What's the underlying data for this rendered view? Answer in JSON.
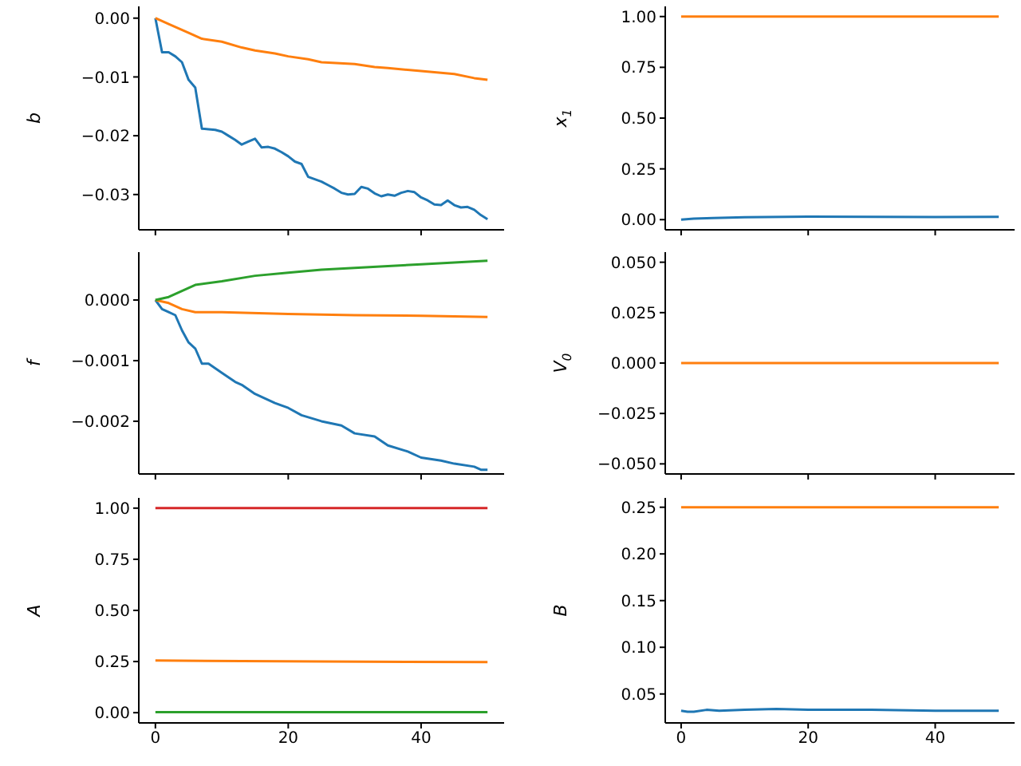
{
  "chart_data": [
    {
      "type": "line",
      "ylabel": "b",
      "xlim": [
        -2.5,
        52.5
      ],
      "xticks": [
        0,
        20,
        40
      ],
      "ylim": [
        -0.036,
        0.002
      ],
      "yticks": [
        {
          "value": 0,
          "label": "0.00"
        },
        {
          "value": -0.01,
          "label": "−0.01"
        },
        {
          "value": -0.02,
          "label": "−0.02"
        },
        {
          "value": -0.03,
          "label": "−0.03"
        }
      ],
      "tick_labels": "y",
      "series": [
        {
          "color": "#1f77b4",
          "x": [
            0,
            1,
            2,
            3,
            4,
            5,
            6,
            7,
            8,
            9,
            10,
            11,
            12,
            13,
            14,
            15,
            16,
            17,
            18,
            19,
            20,
            21,
            22,
            23,
            24,
            25,
            26,
            27,
            28,
            29,
            30,
            31,
            32,
            33,
            34,
            35,
            36,
            37,
            38,
            39,
            40,
            41,
            42,
            43,
            44,
            45,
            46,
            47,
            48,
            49,
            50
          ],
          "values": [
            0,
            -0.0058,
            -0.0058,
            -0.0065,
            -0.0075,
            -0.0105,
            -0.0118,
            -0.0188,
            -0.0189,
            -0.019,
            -0.0193,
            -0.02,
            -0.0207,
            -0.0215,
            -0.021,
            -0.0205,
            -0.022,
            -0.0219,
            -0.0222,
            -0.0228,
            -0.0235,
            -0.0244,
            -0.0248,
            -0.027,
            -0.0274,
            -0.0278,
            -0.0284,
            -0.029,
            -0.0297,
            -0.03,
            -0.0299,
            -0.0287,
            -0.029,
            -0.0298,
            -0.0303,
            -0.03,
            -0.0302,
            -0.0297,
            -0.0294,
            -0.0296,
            -0.0305,
            -0.031,
            -0.0317,
            -0.0318,
            -0.031,
            -0.0318,
            -0.0322,
            -0.0321,
            -0.0326,
            -0.0335,
            -0.0342
          ]
        },
        {
          "color": "#ff7f0e",
          "x": [
            0,
            2,
            5,
            7,
            10,
            13,
            15,
            18,
            20,
            23,
            25,
            30,
            33,
            35,
            40,
            45,
            48,
            50
          ],
          "values": [
            0,
            -0.001,
            -0.0025,
            -0.0035,
            -0.004,
            -0.005,
            -0.0055,
            -0.006,
            -0.0065,
            -0.007,
            -0.0075,
            -0.0078,
            -0.0083,
            -0.0085,
            -0.009,
            -0.0095,
            -0.0102,
            -0.0105
          ]
        }
      ]
    },
    {
      "type": "line",
      "ylabel": "x$_{1}$",
      "xlim": [
        -2.5,
        52.5
      ],
      "xticks": [
        0,
        20,
        40
      ],
      "ylim": [
        -0.05,
        1.05
      ],
      "yticks": [
        {
          "value": 0,
          "label": "0.00"
        },
        {
          "value": 0.25,
          "label": "0.25"
        },
        {
          "value": 0.5,
          "label": "0.50"
        },
        {
          "value": 0.75,
          "label": "0.75"
        },
        {
          "value": 1,
          "label": "1.00"
        }
      ],
      "tick_labels": "y",
      "series": [
        {
          "color": "#1f77b4",
          "x": [
            0,
            2,
            5,
            10,
            20,
            30,
            40,
            50
          ],
          "values": [
            0,
            0.005,
            0.008,
            0.012,
            0.015,
            0.014,
            0.013,
            0.014
          ]
        },
        {
          "color": "#ff7f0e",
          "x": [
            0,
            50
          ],
          "values": [
            1,
            1
          ]
        }
      ]
    },
    {
      "type": "line",
      "ylabel": "f",
      "xlim": [
        -2.5,
        52.5
      ],
      "xticks": [
        0,
        20,
        40
      ],
      "ylim": [
        -0.00287,
        0.00079
      ],
      "yticks": [
        {
          "value": 0,
          "label": "0.000"
        },
        {
          "value": -0.001,
          "label": "−0.001"
        },
        {
          "value": -0.002,
          "label": "−0.002"
        }
      ],
      "tick_labels": "y",
      "series": [
        {
          "color": "#1f77b4",
          "x": [
            0,
            1,
            2,
            3,
            4,
            5,
            6,
            7,
            8,
            10,
            12,
            13,
            15,
            18,
            20,
            22,
            25,
            28,
            30,
            33,
            35,
            38,
            40,
            43,
            45,
            48,
            49,
            50
          ],
          "values": [
            0,
            -0.00015,
            -0.0002,
            -0.00025,
            -0.0005,
            -0.0007,
            -0.0008,
            -0.00105,
            -0.00105,
            -0.0012,
            -0.00135,
            -0.0014,
            -0.00155,
            -0.0017,
            -0.00178,
            -0.0019,
            -0.002,
            -0.00207,
            -0.0022,
            -0.00225,
            -0.0024,
            -0.0025,
            -0.0026,
            -0.00265,
            -0.0027,
            -0.00275,
            -0.0028,
            -0.0028
          ]
        },
        {
          "color": "#ff7f0e",
          "x": [
            0,
            2,
            4,
            6,
            10,
            20,
            30,
            40,
            50
          ],
          "values": [
            0,
            -5e-05,
            -0.00015,
            -0.0002,
            -0.0002,
            -0.00023,
            -0.00025,
            -0.00026,
            -0.00028
          ]
        },
        {
          "color": "#2ca02c",
          "x": [
            0,
            2,
            4,
            6,
            10,
            15,
            20,
            25,
            30,
            35,
            40,
            45,
            50
          ],
          "values": [
            0,
            5e-05,
            0.00015,
            0.00025,
            0.00031,
            0.0004,
            0.00045,
            0.0005,
            0.00053,
            0.00056,
            0.00059,
            0.00062,
            0.00065
          ]
        }
      ]
    },
    {
      "type": "line",
      "ylabel": "V$_{0}$",
      "xlim": [
        -2.5,
        52.5
      ],
      "xticks": [
        0,
        20,
        40
      ],
      "ylim": [
        -0.055,
        0.055
      ],
      "yticks": [
        {
          "value": -0.05,
          "label": "−0.050"
        },
        {
          "value": -0.025,
          "label": "−0.025"
        },
        {
          "value": 0,
          "label": "0.000"
        },
        {
          "value": 0.025,
          "label": "0.025"
        },
        {
          "value": 0.05,
          "label": "0.050"
        }
      ],
      "tick_labels": "y",
      "series": [
        {
          "color": "#ff7f0e",
          "x": [
            0,
            50
          ],
          "values": [
            0,
            0
          ]
        }
      ]
    },
    {
      "type": "line",
      "ylabel": "A",
      "xlim": [
        -2.5,
        52.5
      ],
      "xticks": [
        0,
        20,
        40
      ],
      "ylim": [
        -0.05,
        1.05
      ],
      "yticks": [
        {
          "value": 0,
          "label": "0.00"
        },
        {
          "value": 0.25,
          "label": "0.25"
        },
        {
          "value": 0.5,
          "label": "0.50"
        },
        {
          "value": 0.75,
          "label": "0.75"
        },
        {
          "value": 1,
          "label": "1.00"
        }
      ],
      "series": [
        {
          "color": "#2ca02c",
          "x": [
            0,
            50
          ],
          "values": [
            0.003,
            0.003
          ]
        },
        {
          "color": "#ff7f0e",
          "x": [
            0,
            25,
            50
          ],
          "values": [
            0.255,
            0.25,
            0.247
          ]
        },
        {
          "color": "#d62728",
          "x": [
            0,
            50
          ],
          "values": [
            1,
            1
          ]
        }
      ]
    },
    {
      "type": "line",
      "ylabel": "B",
      "xlim": [
        -2.5,
        52.5
      ],
      "xticks": [
        0,
        20,
        40
      ],
      "ylim": [
        0.019,
        0.26
      ],
      "yticks": [
        {
          "value": 0.05,
          "label": "0.05"
        },
        {
          "value": 0.1,
          "label": "0.10"
        },
        {
          "value": 0.15,
          "label": "0.15"
        },
        {
          "value": 0.2,
          "label": "0.20"
        },
        {
          "value": 0.25,
          "label": "0.25"
        }
      ],
      "series": [
        {
          "color": "#1f77b4",
          "x": [
            0,
            1,
            2,
            4,
            6,
            10,
            15,
            20,
            30,
            40,
            50
          ],
          "values": [
            0.032,
            0.031,
            0.031,
            0.033,
            0.032,
            0.033,
            0.034,
            0.033,
            0.033,
            0.032,
            0.032
          ]
        },
        {
          "color": "#ff7f0e",
          "x": [
            0,
            50
          ],
          "values": [
            0.25,
            0.25
          ]
        }
      ]
    }
  ]
}
